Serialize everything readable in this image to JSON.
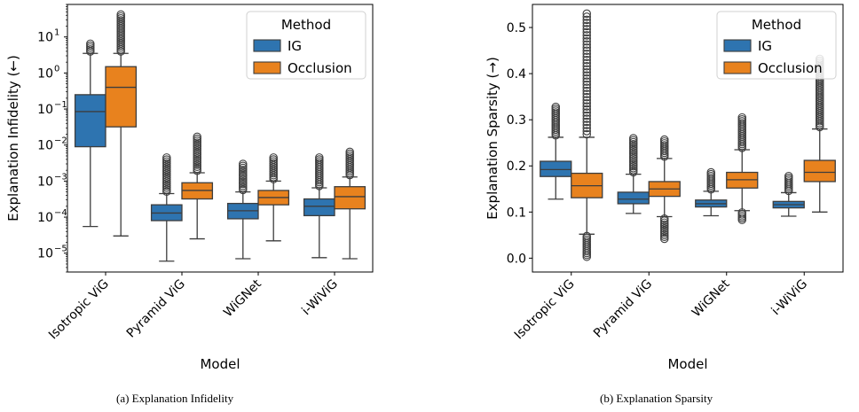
{
  "captions": {
    "a": "(a) Explanation Infidelity",
    "b": "(b) Explanation Sparsity"
  },
  "chart_data": [
    {
      "type": "box",
      "ylabel": "Explanation Infidelity (←)",
      "xlabel": "Model",
      "y_scale": "log",
      "ylim": [
        3e-06,
        80
      ],
      "yticks": [
        1e-05,
        0.0001,
        0.001,
        0.01,
        0.1,
        1,
        10
      ],
      "ytick_labels": [
        {
          "base": "10",
          "exp": "−5"
        },
        {
          "base": "10",
          "exp": "−4"
        },
        {
          "base": "10",
          "exp": "−3"
        },
        {
          "base": "10",
          "exp": "−2"
        },
        {
          "base": "10",
          "exp": "−1"
        },
        {
          "base": "10",
          "exp": "0"
        },
        {
          "base": "10",
          "exp": "1"
        }
      ],
      "categories": [
        "Isotropic ViG",
        "Pyramid ViG",
        "WiGNet",
        "i-WiViG"
      ],
      "legend": {
        "title": "Method",
        "position": "top-right"
      },
      "series": [
        {
          "name": "IG",
          "color": "#2e74b0",
          "boxes": [
            {
              "whisker_low": 5.5e-05,
              "q1": 0.009,
              "median": 0.085,
              "q3": 0.25,
              "whisker_high": 3.5,
              "outlier_max": 6.5
            },
            {
              "whisker_low": 6e-06,
              "q1": 8e-05,
              "median": 0.00013,
              "q3": 0.00022,
              "whisker_high": 0.00045,
              "outlier_max": 0.0045
            },
            {
              "whisker_low": 7e-06,
              "q1": 9e-05,
              "median": 0.00015,
              "q3": 0.00024,
              "whisker_high": 0.0005,
              "outlier_max": 0.003
            },
            {
              "whisker_low": 7.5e-06,
              "q1": 0.00011,
              "median": 0.0002,
              "q3": 0.00032,
              "whisker_high": 0.00065,
              "outlier_max": 0.0045
            }
          ]
        },
        {
          "name": "Occlusion",
          "color": "#e8821e",
          "boxes": [
            {
              "whisker_low": 3e-05,
              "q1": 0.032,
              "median": 0.4,
              "q3": 1.5,
              "whisker_high": 3.5,
              "outlier_max": 42
            },
            {
              "whisker_low": 2.5e-05,
              "q1": 0.00032,
              "median": 0.00055,
              "q3": 0.0009,
              "whisker_high": 0.0017,
              "outlier_max": 0.017
            },
            {
              "whisker_low": 2.2e-05,
              "q1": 0.00022,
              "median": 0.00035,
              "q3": 0.00055,
              "whisker_high": 0.001,
              "outlier_max": 0.0045
            },
            {
              "whisker_low": 7e-06,
              "q1": 0.00017,
              "median": 0.00037,
              "q3": 0.0007,
              "whisker_high": 0.0013,
              "outlier_max": 0.0065
            }
          ]
        }
      ]
    },
    {
      "type": "box",
      "ylabel": "Explanation Sparsity (→)",
      "xlabel": "Model",
      "ylim": [
        -0.03,
        0.55
      ],
      "yticks": [
        0.0,
        0.1,
        0.2,
        0.3,
        0.4,
        0.5
      ],
      "ytick_labels": [
        "0.0",
        "0.1",
        "0.2",
        "0.3",
        "0.4",
        "0.5"
      ],
      "categories": [
        "Isotropic ViG",
        "Pyramid ViG",
        "WiGNet",
        "i-WiViG"
      ],
      "legend": {
        "title": "Method",
        "position": "top-right"
      },
      "series": [
        {
          "name": "IG",
          "color": "#2e74b0",
          "boxes": [
            {
              "whisker_low": 0.128,
              "q1": 0.177,
              "median": 0.192,
              "q3": 0.21,
              "whisker_high": 0.262,
              "outlier_max": 0.328,
              "outlier_min": null
            },
            {
              "whisker_low": 0.097,
              "q1": 0.118,
              "median": 0.128,
              "q3": 0.143,
              "whisker_high": 0.182,
              "outlier_max": 0.26,
              "outlier_min": null
            },
            {
              "whisker_low": 0.092,
              "q1": 0.111,
              "median": 0.118,
              "q3": 0.126,
              "whisker_high": 0.145,
              "outlier_max": 0.186,
              "outlier_min": null
            },
            {
              "whisker_low": 0.091,
              "q1": 0.109,
              "median": 0.116,
              "q3": 0.123,
              "whisker_high": 0.142,
              "outlier_max": 0.178,
              "outlier_min": null
            }
          ]
        },
        {
          "name": "Occlusion",
          "color": "#e8821e",
          "boxes": [
            {
              "whisker_low": 0.052,
              "q1": 0.131,
              "median": 0.157,
              "q3": 0.184,
              "whisker_high": 0.262,
              "outlier_max": 0.53,
              "outlier_min": 0.003
            },
            {
              "whisker_low": 0.09,
              "q1": 0.134,
              "median": 0.15,
              "q3": 0.166,
              "whisker_high": 0.216,
              "outlier_max": 0.257,
              "outlier_min": 0.042
            },
            {
              "whisker_low": 0.103,
              "q1": 0.152,
              "median": 0.17,
              "q3": 0.186,
              "whisker_high": 0.235,
              "outlier_max": 0.305,
              "outlier_min": 0.083
            },
            {
              "whisker_low": 0.1,
              "q1": 0.166,
              "median": 0.186,
              "q3": 0.212,
              "whisker_high": 0.28,
              "outlier_max": 0.432,
              "outlier_min": null
            }
          ]
        }
      ]
    }
  ]
}
